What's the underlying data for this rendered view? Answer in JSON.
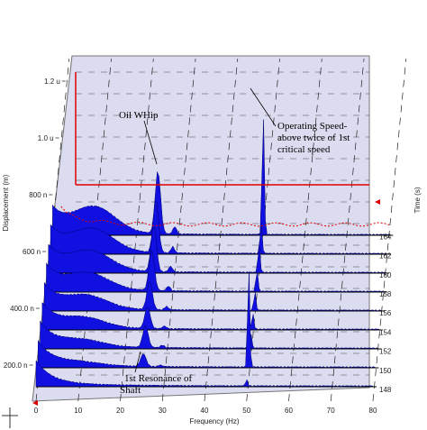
{
  "chart_data": {
    "type": "waterfall",
    "xlabel": "Frequency (Hz)",
    "ylabel": "Displacement (m)",
    "zlabel": "Time (s)",
    "x_ticks": [
      "0",
      "10",
      "20",
      "30",
      "40",
      "50",
      "60",
      "70",
      "80"
    ],
    "xlim": [
      0,
      80
    ],
    "y_ticks": [
      "200.0 n",
      "400.0 n",
      "600 n",
      "800 n",
      "1.0 u",
      "1.2 u"
    ],
    "time_ticks": [
      "148",
      "150",
      "152",
      "154",
      "156",
      "158",
      "160",
      "162",
      "164"
    ],
    "traces": [
      {
        "time": 148,
        "peaks": [
          {
            "freq": 50,
            "amp": 0.1
          }
        ]
      },
      {
        "time": 150,
        "peaks": [
          {
            "freq": 25,
            "amp": 0.2
          },
          {
            "freq": 50,
            "amp": 1.65
          }
        ]
      },
      {
        "time": 152,
        "peaks": [
          {
            "freq": 25,
            "amp": 0.35
          },
          {
            "freq": 50,
            "amp": 0.25
          }
        ]
      },
      {
        "time": 154,
        "peaks": [
          {
            "freq": 25,
            "amp": 0.35
          },
          {
            "freq": 50,
            "amp": 0.25
          }
        ]
      },
      {
        "time": 156,
        "peaks": [
          {
            "freq": 25,
            "amp": 0.45
          },
          {
            "freq": 50,
            "amp": 0.3
          }
        ]
      },
      {
        "time": 158,
        "peaks": [
          {
            "freq": 25,
            "amp": 0.65
          },
          {
            "freq": 50,
            "amp": 0.35
          }
        ]
      },
      {
        "time": 160,
        "peaks": [
          {
            "freq": 25,
            "amp": 0.75
          },
          {
            "freq": 50,
            "amp": 0.45
          }
        ]
      },
      {
        "time": 162,
        "peaks": [
          {
            "freq": 25,
            "amp": 0.85
          },
          {
            "freq": 50,
            "amp": 0.5
          }
        ]
      },
      {
        "time": 164,
        "peaks": [
          {
            "freq": 25,
            "amp": 1.0
          },
          {
            "freq": 50,
            "amp": 2.0
          }
        ]
      }
    ],
    "annotations": [
      {
        "text": "Oil WHip"
      },
      {
        "text": "Operating Speed-above twice of 1st critical speed"
      },
      {
        "text": "1st Resonance of Shaft"
      }
    ],
    "colors": {
      "fill": "#1010e0",
      "panel": "#dcdcf0",
      "marker": "#ff0000"
    }
  }
}
